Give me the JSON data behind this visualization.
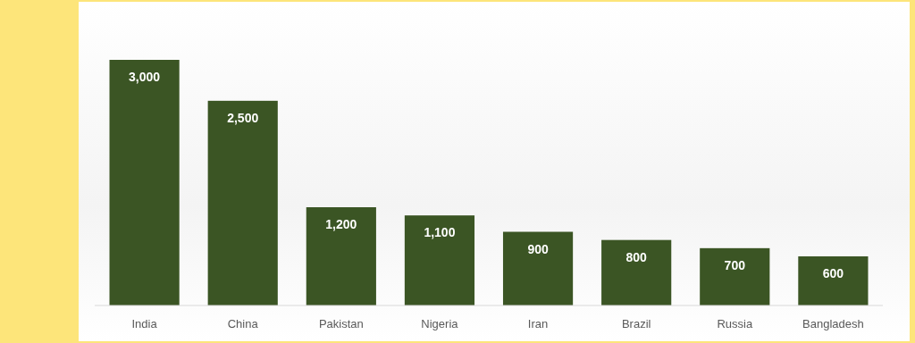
{
  "chart_data": {
    "type": "bar",
    "categories": [
      "India",
      "China",
      "Pakistan",
      "Nigeria",
      "Iran",
      "Brazil",
      "Russia",
      "Bangladesh"
    ],
    "values": [
      3000,
      2500,
      1200,
      1100,
      900,
      800,
      700,
      600
    ],
    "value_labels": [
      "3,000",
      "2,500",
      "1,200",
      "1,100",
      "900",
      "800",
      "700",
      "600"
    ],
    "color": "#3b5524"
  }
}
